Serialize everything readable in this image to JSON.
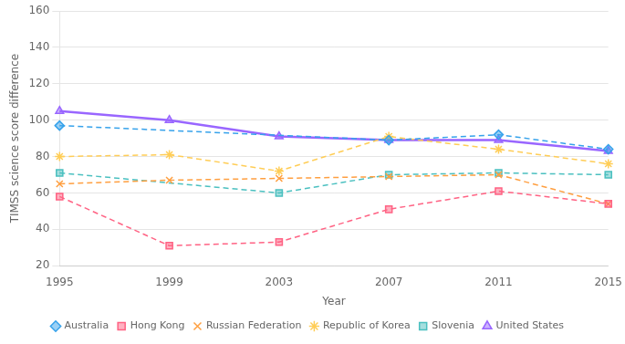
{
  "chart_data": {
    "type": "line",
    "x": [
      1995,
      1999,
      2003,
      2007,
      2011,
      2015
    ],
    "series": [
      {
        "name": "Australia",
        "values": [
          97,
          null,
          null,
          89,
          92,
          84
        ],
        "marker": "diamond",
        "line_style": "dashed"
      },
      {
        "name": "Hong Kong",
        "values": [
          58,
          31,
          33,
          51,
          61,
          54
        ],
        "marker": "square",
        "line_style": "dashed"
      },
      {
        "name": "Russian Federation",
        "values": [
          65,
          67,
          68,
          69,
          70,
          54
        ],
        "marker": "x",
        "line_style": "dashed"
      },
      {
        "name": "Republic of Korea",
        "values": [
          80,
          81,
          72,
          91,
          84,
          76
        ],
        "marker": "star",
        "line_style": "dashed"
      },
      {
        "name": "Slovenia",
        "values": [
          71,
          null,
          60,
          70,
          71,
          70
        ],
        "marker": "square",
        "line_style": "dashed"
      },
      {
        "name": "United States",
        "values": [
          105,
          100,
          91,
          89,
          89,
          83
        ],
        "marker": "triangle",
        "line_style": "solid"
      }
    ],
    "xlabel": "Year",
    "ylabel": "TIMSS science score difference",
    "xlim": [
      1995,
      2015
    ],
    "xticks": [
      1995,
      1999,
      2003,
      2007,
      2011,
      2015
    ],
    "ylim": [
      20,
      160
    ],
    "yticks": [
      20,
      40,
      60,
      80,
      100,
      120,
      140,
      160
    ],
    "grid": true,
    "legend": "bottom"
  }
}
